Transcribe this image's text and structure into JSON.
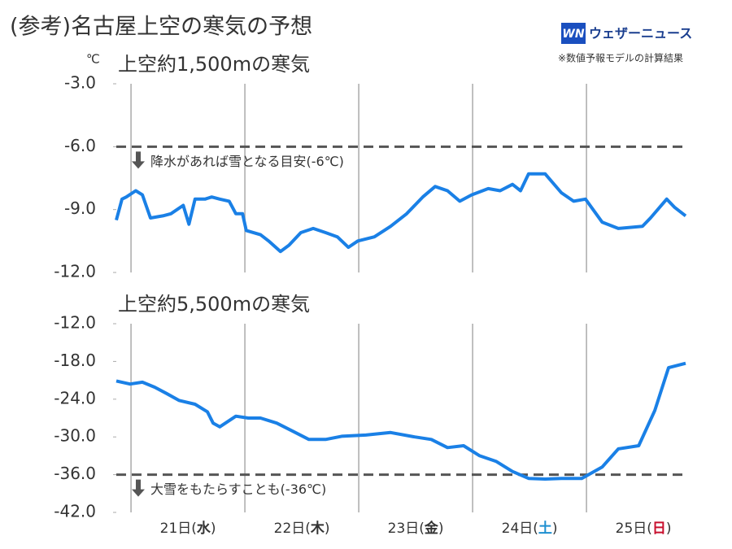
{
  "header": {
    "title": "(参考)名古屋上空の寒気の予想",
    "logo_mark": "WN",
    "logo": "ウェザーニュース",
    "note": "※数値予報モデルの計算結果"
  },
  "chart_data": [
    {
      "type": "line",
      "title": "上空約1,500mの寒気",
      "y_unit": "℃",
      "color": "#1a80e6",
      "xlim": [
        -3.1,
        116.9
      ],
      "xticks": [
        0,
        24,
        48,
        72,
        96
      ],
      "ylim": [
        -12,
        -3
      ],
      "yticks": [
        {
          "value": -3,
          "label": "-3.0"
        },
        {
          "value": -6,
          "label": "-6.0"
        },
        {
          "value": -9,
          "label": "-9.0"
        },
        {
          "value": -12,
          "label": "-12.0"
        }
      ],
      "threshold": {
        "value": -6,
        "label": "降水があれば雪となる目安(-6℃)"
      },
      "x": [
        -3.1,
        -1.9,
        -1,
        1,
        2.4,
        4.1,
        6.7,
        8.4,
        11,
        12.2,
        13.5,
        15.6,
        17,
        18.7,
        20.7,
        22.1,
        23.5,
        24.3,
        27.3,
        29,
        31.5,
        33.3,
        35.8,
        38.4,
        41,
        43.5,
        45.8,
        47.8,
        51.3,
        54.7,
        58.1,
        61.5,
        64.1,
        66.7,
        69.3,
        71.8,
        75.3,
        77.8,
        80.4,
        82.1,
        83.8,
        87.3,
        90.7,
        93.3,
        95.8,
        99.3,
        102.7,
        107.8,
        109.5,
        112.9,
        114.6,
        116.9
      ],
      "values": [
        -9.5,
        -8.5,
        -8.4,
        -8.1,
        -8.3,
        -9.4,
        -9.3,
        -9.2,
        -8.8,
        -9.7,
        -8.5,
        -8.5,
        -8.4,
        -8.5,
        -8.6,
        -9.2,
        -9.2,
        -10,
        -10.2,
        -10.5,
        -11,
        -10.7,
        -10.1,
        -9.9,
        -10.1,
        -10.3,
        -10.8,
        -10.5,
        -10.3,
        -9.8,
        -9.2,
        -8.4,
        -7.9,
        -8.1,
        -8.6,
        -8.3,
        -8,
        -8.1,
        -7.8,
        -8.1,
        -7.3,
        -7.3,
        -8.2,
        -8.6,
        -8.5,
        -9.6,
        -9.9,
        -9.8,
        -9.4,
        -8.5,
        -8.9,
        -9.3
      ]
    },
    {
      "type": "line",
      "title": "上空約5,500mの寒気",
      "color": "#1a80e6",
      "xlim": [
        -3.1,
        116.9
      ],
      "xticks": [
        0,
        24,
        48,
        72,
        96
      ],
      "ylim": [
        -42,
        -12
      ],
      "yticks": [
        {
          "value": -12,
          "label": "-12.0"
        },
        {
          "value": -18,
          "label": "-18.0"
        },
        {
          "value": -24,
          "label": "-24.0"
        },
        {
          "value": -30,
          "label": "-30.0"
        },
        {
          "value": -36,
          "label": "-36.0"
        },
        {
          "value": -42,
          "label": "-42.0"
        }
      ],
      "threshold": {
        "value": -36,
        "label": "大雪をもたらすことも(-36℃)"
      },
      "x": [
        -3.1,
        -0.2,
        2.4,
        5,
        7.5,
        10.1,
        13.5,
        16.1,
        17.3,
        18.7,
        22.1,
        24.7,
        27.3,
        30.7,
        34.1,
        37.5,
        41,
        44.4,
        49.5,
        54.7,
        59.8,
        63.3,
        66.7,
        70.1,
        73.5,
        77,
        80.4,
        83.8,
        87.3,
        90.7,
        95,
        99.3,
        102.7,
        107,
        110.4,
        113.3,
        116.9
      ],
      "values": [
        -21.1,
        -21.6,
        -21.3,
        -22.1,
        -23.1,
        -24.2,
        -24.8,
        -26,
        -27.8,
        -28.4,
        -26.7,
        -27,
        -27,
        -27.8,
        -29.1,
        -30.4,
        -30.4,
        -29.9,
        -29.7,
        -29.3,
        -30,
        -30.4,
        -31.7,
        -31.4,
        -33,
        -33.9,
        -35.5,
        -36.6,
        -36.7,
        -36.6,
        -36.6,
        -34.8,
        -31.9,
        -31.4,
        -25.8,
        -19,
        -18.3
      ],
      "categories": [
        [
          "21日(",
          "水",
          ")"
        ],
        [
          "22日(",
          "木",
          ")"
        ],
        [
          "23日(",
          "金",
          ")"
        ],
        [
          "24日(",
          "土",
          ")"
        ],
        [
          "25日(",
          "日",
          ")"
        ]
      ],
      "weekday_colors": [
        "#333333",
        "#333333",
        "#333333",
        "#1e8fd0",
        "#c8102e"
      ]
    }
  ]
}
